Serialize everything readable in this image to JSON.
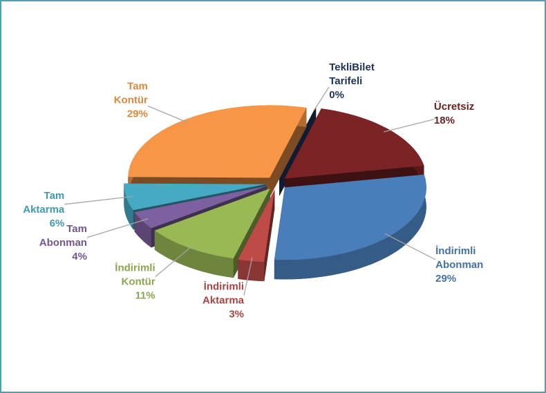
{
  "chart_data": {
    "type": "pie",
    "categories": [
      "TekliBilet Tarifeli",
      "Ücretsiz",
      "İndirimli Abonman",
      "İndirimli Aktarma",
      "İndirimli Kontür",
      "Tam Abonman",
      "Tam Aktarma",
      "Tam Kontür"
    ],
    "values": [
      0,
      18,
      29,
      3,
      11,
      4,
      6,
      29
    ],
    "value_labels": [
      "0%",
      "18%",
      "29%",
      "3%",
      "11%",
      "4%",
      "6%",
      "29%"
    ],
    "colors": [
      "#1f3864",
      "#7b2325",
      "#4a7ebb",
      "#be4b48",
      "#98b954",
      "#7d60a0",
      "#46aac5",
      "#f79646"
    ]
  }
}
